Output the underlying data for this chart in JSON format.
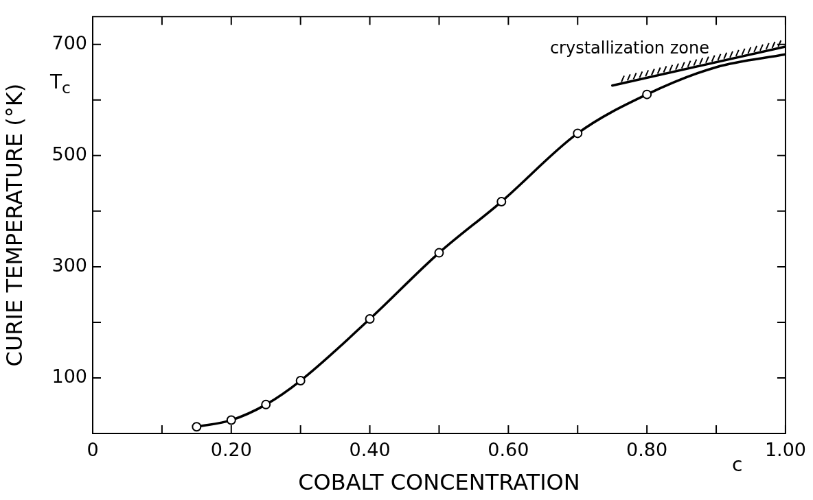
{
  "chart_data": {
    "type": "line",
    "xlabel": "COBALT CONCENTRATION",
    "ylabel": "CURIE TEMPERATURE (°K)",
    "xlim": [
      0,
      1.0
    ],
    "ylim": [
      0,
      750
    ],
    "xticks": [
      0,
      {
        "value": 0.1,
        "label": null
      },
      {
        "value": 0.2,
        "label": "0.20"
      },
      {
        "value": 0.3,
        "label": null
      },
      {
        "value": 0.4,
        "label": "0.40"
      },
      {
        "value": 0.5,
        "label": null
      },
      {
        "value": 0.6,
        "label": "0.60"
      },
      {
        "value": 0.7,
        "label": null
      },
      {
        "value": 0.8,
        "label": "0.80"
      },
      {
        "value": 0.9,
        "label": null
      },
      {
        "value": 1.0,
        "label": "1.00"
      }
    ],
    "yticks": [
      {
        "value": 0,
        "label": null
      },
      100,
      {
        "value": 200,
        "label": null
      },
      300,
      {
        "value": 400,
        "label": null
      },
      500,
      {
        "value": 600,
        "label": null
      },
      700
    ],
    "grid": false,
    "legend": false,
    "series": [
      {
        "type": "scatter",
        "marker": "circle",
        "color": "#000000",
        "x": [
          0.15,
          0.2,
          0.25,
          0.3,
          0.4,
          0.5,
          0.59,
          0.7,
          0.8
        ],
        "values": [
          12,
          24,
          52,
          95,
          206,
          325,
          417,
          540,
          610
        ]
      },
      {
        "marker": "none",
        "color": "#000000",
        "x": [
          0.15,
          0.2,
          0.25,
          0.3,
          0.4,
          0.5,
          0.59,
          0.7,
          0.8,
          0.9,
          1.0
        ],
        "values": [
          12,
          24,
          52,
          95,
          206,
          325,
          417,
          540,
          610,
          659,
          682
        ]
      },
      {
        "marker": "none",
        "color": "#000000",
        "x": [
          0.75,
          1.0
        ],
        "values": [
          626,
          696
        ]
      }
    ],
    "annotations": [
      "crystallization zone",
      "T$_{c}$",
      "c"
    ]
  }
}
